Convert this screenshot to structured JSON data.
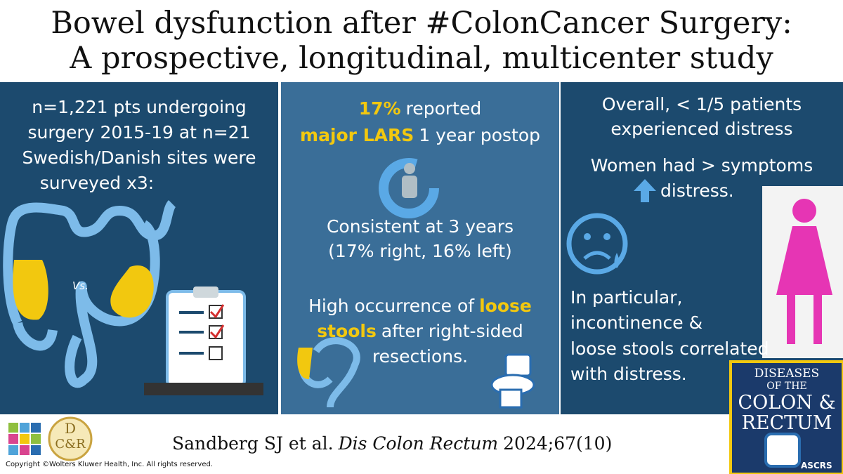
{
  "header": {
    "title_lines": [
      "Bowel dysfunction after #ColonCancer Surgery:",
      "A prospective, longitudinal, multicenter study"
    ]
  },
  "left_panel": {
    "lines": [
      "n=1,221 pts undergoing",
      "surgery 2015-19  at n=21",
      "Swedish/Danish sites were",
      "surveyed x3:"
    ],
    "vs_label": "Vs."
  },
  "middle_panel": {
    "lines": [
      [
        {
          "text": "17%",
          "highlight": true
        },
        {
          "text": "reported"
        }
      ],
      [
        {
          "text": "major LARS",
          "highlight": true
        },
        {
          "text": "1 year postop"
        }
      ],
      [
        {
          "text": "Consistent at 3 years"
        }
      ],
      [
        {
          "text": "(17% right, 16% left)"
        }
      ],
      [
        {
          "text": "High occurrence of"
        },
        {
          "text": "loose",
          "highlight": true
        }
      ],
      [
        {
          "text": "stools",
          "highlight": true
        },
        {
          "text": "after right-sided"
        }
      ],
      [
        {
          "text": "resections."
        }
      ]
    ]
  },
  "right_panel": {
    "lines": [
      "Overall, < 1/5 patients",
      "experienced distress",
      "Women had  > symptoms",
      "distress.",
      "In particular,",
      "incontinence &",
      "loose stools correlated",
      "with distress."
    ]
  },
  "journal_cover": {
    "lines": [
      "DISEASES",
      "OF THE",
      "COLON &",
      "RECTUM"
    ],
    "society": "ASCRS"
  },
  "journal_badge": {
    "top": "D",
    "bottom": "C&R"
  },
  "citation": [
    {
      "text": "Sandberg SJ et al."
    },
    {
      "text": "Dis Colon Rectum",
      "italic": true
    },
    {
      "text": "2024;67(10)"
    }
  ],
  "copyright": "Copyright ©Wolters Kluwer Health, Inc. All rights reserved."
}
